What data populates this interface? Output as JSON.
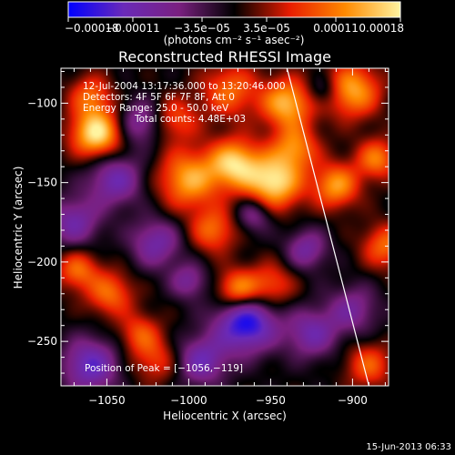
{
  "chart_data": {
    "type": "heatmap",
    "title": "Reconstructed RHESSI Image",
    "xlabel": "Heliocentric X (arcsec)",
    "ylabel": "Heliocentric Y (arcsec)",
    "xlim": [
      -1078,
      -878
    ],
    "ylim": [
      -278,
      -78
    ],
    "xticks": [
      -1050,
      -1000,
      -950,
      -900
    ],
    "yticks": [
      -100,
      -150,
      -200,
      -250
    ],
    "x_tick_labels": [
      "−1050",
      "−1000",
      "−950",
      "−900"
    ],
    "y_tick_labels": [
      "−100",
      "−150",
      "−200",
      "−250"
    ],
    "colorbar": {
      "range": [
        -0.00018,
        0.00018
      ],
      "ticks": [
        -0.00018,
        -0.00011,
        -3.5e-05,
        3.5e-05,
        0.00011,
        0.00018
      ],
      "tick_labels": [
        "−0.00018",
        "−0.00011",
        "−3.5e−05",
        "3.5e−05",
        "0.00011",
        "0.00018"
      ],
      "unit_label": "(photons cm⁻² s⁻¹ asec⁻²)"
    },
    "annotations": {
      "time": "12-Jul-2004 13:17:36.000 to 13:20:46.000",
      "detectors": "Detectors: 4F 5F 6F 7F 8F, Att 0",
      "energy": "Energy Range: 25.0 - 50.0 keV",
      "counts": "Total counts: 4.48E+03",
      "peak": "Position of Peak = [−1056,−119]"
    },
    "peak": [
      -1056,
      -119
    ],
    "limb_line": [
      [
        -940,
        -78
      ],
      [
        -890,
        -278
      ]
    ],
    "colormap": [
      "#0000ff",
      "#6a2ab8",
      "#7a2080",
      "#000000",
      "#e81c00",
      "#ff8a00",
      "#fff4a0"
    ],
    "sources": [
      {
        "x": -1056,
        "y": -119,
        "a": 1.0,
        "s": 11
      },
      {
        "x": -1060,
        "y": -95,
        "a": 0.5,
        "s": 9
      },
      {
        "x": -1008,
        "y": -110,
        "a": 0.45,
        "s": 10
      },
      {
        "x": -975,
        "y": -92,
        "a": 0.55,
        "s": 12
      },
      {
        "x": -940,
        "y": -100,
        "a": 0.8,
        "s": 11
      },
      {
        "x": -900,
        "y": -92,
        "a": 0.75,
        "s": 12
      },
      {
        "x": -935,
        "y": -128,
        "a": 0.6,
        "s": 10
      },
      {
        "x": -1000,
        "y": -148,
        "a": 0.75,
        "s": 13
      },
      {
        "x": -972,
        "y": -138,
        "a": 0.85,
        "s": 11
      },
      {
        "x": -948,
        "y": -150,
        "a": 0.95,
        "s": 12
      },
      {
        "x": -910,
        "y": -152,
        "a": 0.7,
        "s": 10
      },
      {
        "x": -885,
        "y": -135,
        "a": 0.6,
        "s": 9
      },
      {
        "x": -985,
        "y": -180,
        "a": 0.55,
        "s": 10
      },
      {
        "x": -950,
        "y": -215,
        "a": 0.5,
        "s": 10
      },
      {
        "x": -1048,
        "y": -220,
        "a": 0.55,
        "s": 10
      },
      {
        "x": -1068,
        "y": -205,
        "a": 0.55,
        "s": 9
      },
      {
        "x": -1030,
        "y": -245,
        "a": 0.45,
        "s": 9
      },
      {
        "x": -970,
        "y": -218,
        "a": 0.75,
        "s": 9
      },
      {
        "x": -1020,
        "y": -262,
        "a": 0.4,
        "s": 10
      },
      {
        "x": -880,
        "y": -190,
        "a": 0.55,
        "s": 10
      },
      {
        "x": -890,
        "y": -265,
        "a": 0.5,
        "s": 10
      },
      {
        "x": -1045,
        "y": -148,
        "a": -0.6,
        "s": 12
      },
      {
        "x": -1030,
        "y": -112,
        "a": -0.5,
        "s": 10
      },
      {
        "x": -1070,
        "y": -175,
        "a": -0.55,
        "s": 11
      },
      {
        "x": -1020,
        "y": -188,
        "a": -0.55,
        "s": 11
      },
      {
        "x": -1060,
        "y": -265,
        "a": -0.7,
        "s": 12
      },
      {
        "x": -965,
        "y": -238,
        "a": -0.95,
        "s": 13
      },
      {
        "x": -992,
        "y": -262,
        "a": -0.6,
        "s": 11
      },
      {
        "x": -925,
        "y": -245,
        "a": -0.55,
        "s": 11
      },
      {
        "x": -960,
        "y": -170,
        "a": -0.45,
        "s": 8
      },
      {
        "x": -928,
        "y": -192,
        "a": -0.5,
        "s": 9
      },
      {
        "x": -900,
        "y": -230,
        "a": -0.45,
        "s": 11
      },
      {
        "x": -918,
        "y": -92,
        "a": -0.35,
        "s": 7
      },
      {
        "x": -1000,
        "y": -212,
        "a": -0.45,
        "s": 8
      }
    ]
  },
  "footer": {
    "date_stamp": "15-Jun-2013 06:33"
  }
}
